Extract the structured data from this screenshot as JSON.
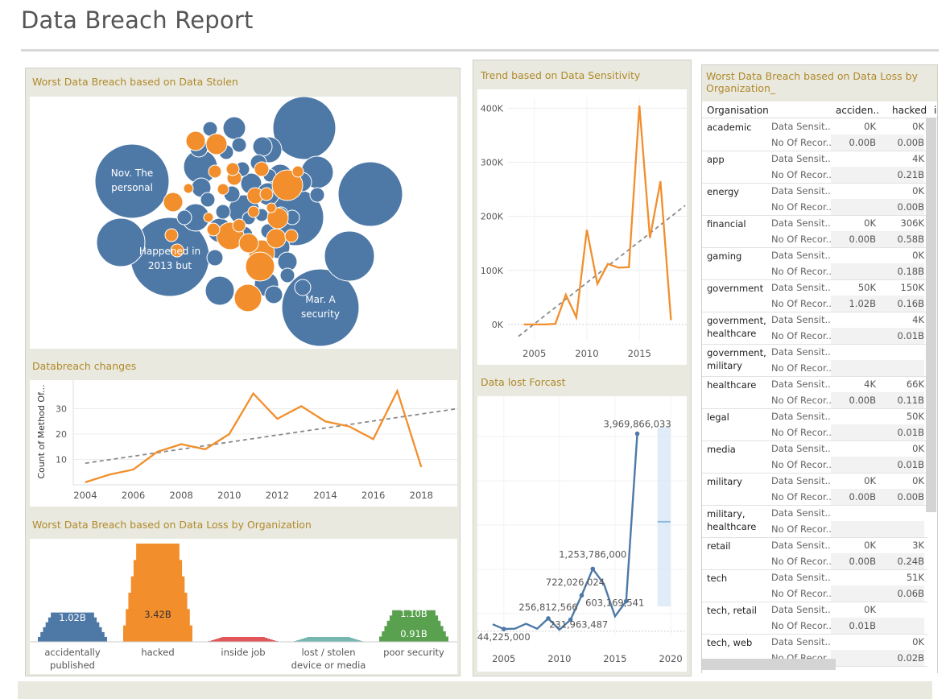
{
  "page": {
    "title": "Data Breach Report"
  },
  "panels": {
    "data_stolen": {
      "title": "Worst Data Breach based on Data Stolen"
    },
    "databreach_changes": {
      "title": "Databreach changes",
      "ylabel": "Count of Method Of..."
    },
    "loss_by_org_bars": {
      "title": "Worst Data Breach based on Data Loss by Organization"
    },
    "trend_sensitivity": {
      "title": "Trend based on Data Sensitivity"
    },
    "data_lost_forecast": {
      "title": "Data lost Forcast"
    },
    "loss_by_org_table": {
      "title": "Worst Data Breach based on Data Loss by Organization_"
    }
  },
  "colors": {
    "blue": "#4e79a7",
    "orange": "#f28e2b",
    "red": "#e15759",
    "teal": "#76b7b2",
    "green": "#59a14f",
    "title_gold": "#b08a2a"
  },
  "bubble_labels": [
    "Nov. The personal",
    "Happened in 2013 but",
    "Mar. A security"
  ],
  "chart_data": [
    {
      "type": "line",
      "title": "Databreach changes",
      "ylabel": "Count of Method Of...",
      "x": [
        2004,
        2005,
        2006,
        2007,
        2008,
        2009,
        2010,
        2011,
        2012,
        2013,
        2014,
        2015,
        2016,
        2017,
        2018
      ],
      "series": [
        {
          "values": [
            1,
            4,
            6,
            13,
            16,
            14,
            20,
            36,
            26,
            31,
            25,
            23,
            18,
            37,
            7
          ]
        }
      ],
      "trend": {
        "start": 8.5,
        "end": 30
      },
      "xticks": [
        "2004",
        "2006",
        "2008",
        "2010",
        "2012",
        "2014",
        "2016",
        "2018"
      ],
      "yticks": [
        "10",
        "20",
        "30"
      ],
      "ylim": [
        0,
        40
      ]
    },
    {
      "type": "bar",
      "title": "Worst Data Breach based on Data Loss by Organization",
      "categories": [
        "accidentally published",
        "hacked",
        "inside job",
        "lost / stolen device or media",
        "poor security"
      ],
      "values": [
        1.02,
        3.42,
        0.05,
        0.03,
        1.1
      ],
      "labels": [
        "1.02B",
        "3.42B",
        "",
        "",
        "1.10B"
      ],
      "secondary_label": {
        "category": "poor security",
        "text": "0.91B"
      }
    },
    {
      "type": "line",
      "title": "Trend based on Data Sensitivity",
      "x": [
        2004,
        2005,
        2006,
        2007,
        2008,
        2009,
        2010,
        2011,
        2012,
        2013,
        2014,
        2015,
        2016,
        2017,
        2018
      ],
      "series": [
        {
          "values": [
            0,
            0,
            0,
            1000,
            55000,
            13000,
            175000,
            75000,
            112000,
            105000,
            106000,
            405000,
            160000,
            265000,
            8000
          ]
        }
      ],
      "trend": {
        "start": -22000,
        "end": 220000
      },
      "xticks": [
        "2005",
        "2010",
        "2015"
      ],
      "yticks": [
        "0K",
        "100K",
        "200K",
        "300K",
        "400K"
      ],
      "ylim": [
        -30000,
        420000
      ]
    },
    {
      "type": "line",
      "title": "Data lost Forcast",
      "x": [
        2004,
        2005,
        2006,
        2007,
        2008,
        2009,
        2010,
        2011,
        2012,
        2013,
        2014,
        2015,
        2016,
        2017
      ],
      "series": [
        {
          "values": [
            140000000,
            44225000,
            50000000,
            150000000,
            50000000,
            256812566,
            30000000,
            231963487,
            722026024,
            1253786000,
            950000000,
            300000000,
            603169541,
            3969866033
          ]
        }
      ],
      "point_labels": [
        {
          "i": 1,
          "text": "44,225,000"
        },
        {
          "i": 5,
          "text": "256,812,566"
        },
        {
          "i": 7,
          "text": "231,963,487"
        },
        {
          "i": 8,
          "text": "722,026,024"
        },
        {
          "i": 9,
          "text": "1,253,786,000"
        },
        {
          "i": 12,
          "text": "603,169,541"
        },
        {
          "i": 13,
          "text": "3,969,866,033"
        }
      ],
      "forecast": {
        "x": 2019.4,
        "low": 500000000,
        "high": 4100000000,
        "mid": 2200000000
      },
      "xticks": [
        "2005",
        "2010",
        "2015",
        "2020"
      ],
      "ylim": [
        -100000000,
        4400000000
      ]
    }
  ],
  "table": {
    "headers": [
      "Organisation",
      "acciden..",
      "hacked",
      "i"
    ],
    "measures": [
      "Data Sensit..",
      "No Of Recor.."
    ],
    "rows": [
      {
        "org": "academic",
        "a": [
          "0K",
          "0.00B"
        ],
        "h": [
          "0K",
          "0.00B"
        ]
      },
      {
        "org": "app",
        "a": [
          "",
          ""
        ],
        "h": [
          "4K",
          "0.21B"
        ]
      },
      {
        "org": "energy",
        "a": [
          "",
          ""
        ],
        "h": [
          "0K",
          "0.00B"
        ]
      },
      {
        "org": "financial",
        "a": [
          "0K",
          "0.00B"
        ],
        "h": [
          "306K",
          "0.58B"
        ]
      },
      {
        "org": "gaming",
        "a": [
          "",
          ""
        ],
        "h": [
          "0K",
          "0.18B"
        ]
      },
      {
        "org": "government",
        "a": [
          "50K",
          "1.02B"
        ],
        "h": [
          "150K",
          "0.16B"
        ]
      },
      {
        "org": "government, healthcare",
        "a": [
          "",
          ""
        ],
        "h": [
          "4K",
          "0.01B"
        ]
      },
      {
        "org": "government, military",
        "a": [
          "",
          ""
        ],
        "h": [
          "",
          ""
        ]
      },
      {
        "org": "healthcare",
        "a": [
          "4K",
          "0.00B"
        ],
        "h": [
          "66K",
          "0.11B"
        ]
      },
      {
        "org": "legal",
        "a": [
          "",
          ""
        ],
        "h": [
          "50K",
          "0.01B"
        ]
      },
      {
        "org": "media",
        "a": [
          "",
          ""
        ],
        "h": [
          "0K",
          "0.01B"
        ]
      },
      {
        "org": "military",
        "a": [
          "0K",
          "0.00B"
        ],
        "h": [
          "0K",
          "0.00B"
        ]
      },
      {
        "org": "military, healthcare",
        "a": [
          "",
          ""
        ],
        "h": [
          "",
          ""
        ]
      },
      {
        "org": "retail",
        "a": [
          "0K",
          "0.00B"
        ],
        "h": [
          "3K",
          "0.24B"
        ]
      },
      {
        "org": "tech",
        "a": [
          "",
          ""
        ],
        "h": [
          "51K",
          "0.06B"
        ]
      },
      {
        "org": "tech, retail",
        "a": [
          "0K",
          "0.01B"
        ],
        "h": [
          "",
          ""
        ]
      },
      {
        "org": "tech, web",
        "a": [
          "",
          ""
        ],
        "h": [
          "0K",
          "0.02B"
        ]
      }
    ]
  }
}
